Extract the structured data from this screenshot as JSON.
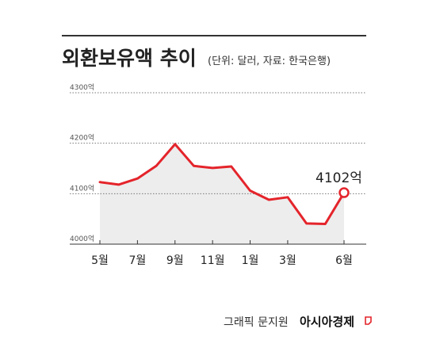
{
  "chart_data": {
    "type": "area",
    "title": "외환보유액 추이",
    "subtitle": "(단위: 달러, 자료: 한국은행)",
    "ylim": [
      4000,
      4300
    ],
    "yticks": [
      "4300억",
      "4200억",
      "4100억",
      "4000억"
    ],
    "ytick_values": [
      4300,
      4200,
      4100,
      4000
    ],
    "xtick_labels": [
      "5월",
      "7월",
      "9월",
      "11월",
      "1월",
      "3월",
      "6월"
    ],
    "xtick_indices": [
      0,
      2,
      4,
      6,
      8,
      10,
      13
    ],
    "values": [
      4123,
      4118,
      4130,
      4155,
      4198,
      4155,
      4151,
      4154,
      4106,
      4088,
      4093,
      4041,
      4040,
      4102
    ],
    "highlight": {
      "index": 13,
      "label": "4102억"
    },
    "grid": true
  },
  "colors": {
    "line": "#e4242b",
    "area": "#ededed",
    "grid": "#777777",
    "axis": "#333333",
    "title_rule": "#333333",
    "brand_accent": "#e4242b"
  },
  "credit": {
    "text": "그래픽 문지원",
    "brand": "아시아경제",
    "brand_icon": "page-corner-icon"
  }
}
